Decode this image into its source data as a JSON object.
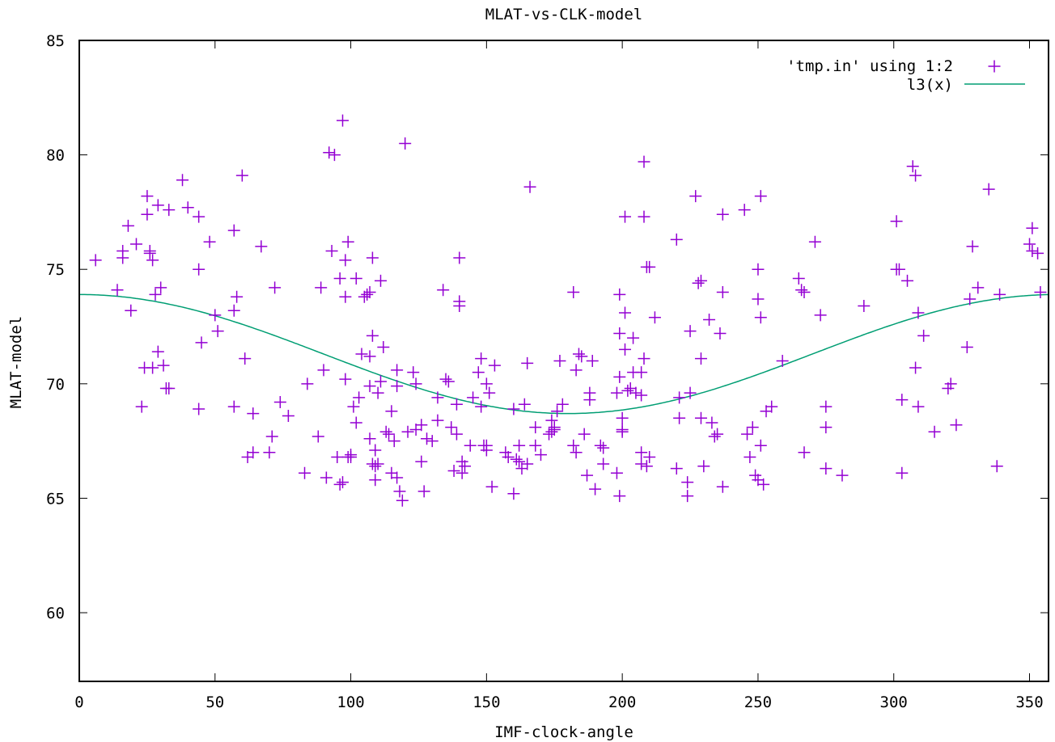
{
  "chart_data": {
    "type": "scatter",
    "title": "MLAT-vs-CLK-model",
    "xlabel": "IMF-clock-angle",
    "ylabel": "MLAT-model",
    "xlim": [
      0,
      357
    ],
    "ylim": [
      57,
      85
    ],
    "xticks": [
      0,
      50,
      100,
      150,
      200,
      250,
      300,
      350
    ],
    "yticks": [
      60,
      65,
      70,
      75,
      80,
      85
    ],
    "grid": false,
    "legend_position": "top-right",
    "colors": {
      "points": "#9400d3",
      "curve": "#009e73"
    },
    "series": [
      {
        "name": "'tmp.in' using 1:2",
        "kind": "points",
        "marker": "plus",
        "points": [
          [
            6,
            75.4
          ],
          [
            14,
            74.1
          ],
          [
            16,
            75.5
          ],
          [
            16,
            75.8
          ],
          [
            18,
            76.9
          ],
          [
            19,
            73.2
          ],
          [
            21,
            76.1
          ],
          [
            23,
            69.0
          ],
          [
            24,
            70.7
          ],
          [
            25,
            78.2
          ],
          [
            25,
            77.4
          ],
          [
            26,
            75.8
          ],
          [
            26,
            75.7
          ],
          [
            27,
            75.4
          ],
          [
            27,
            70.7
          ],
          [
            28,
            73.9
          ],
          [
            29,
            77.8
          ],
          [
            30,
            74.2
          ],
          [
            29,
            71.4
          ],
          [
            31,
            70.8
          ],
          [
            32,
            69.8
          ],
          [
            33,
            77.6
          ],
          [
            33,
            69.8
          ],
          [
            38,
            78.9
          ],
          [
            40,
            77.7
          ],
          [
            44,
            77.3
          ],
          [
            44,
            75.0
          ],
          [
            44,
            68.9
          ],
          [
            45,
            71.8
          ],
          [
            48,
            76.2
          ],
          [
            50,
            73.0
          ],
          [
            51,
            72.3
          ],
          [
            57,
            76.7
          ],
          [
            57,
            73.2
          ],
          [
            57,
            69.0
          ],
          [
            58,
            73.8
          ],
          [
            60,
            79.1
          ],
          [
            61,
            71.1
          ],
          [
            62,
            66.8
          ],
          [
            64,
            67.0
          ],
          [
            64,
            68.7
          ],
          [
            67,
            76.0
          ],
          [
            70,
            67.0
          ],
          [
            71,
            67.7
          ],
          [
            72,
            74.2
          ],
          [
            74,
            69.2
          ],
          [
            77,
            68.6
          ],
          [
            83,
            66.1
          ],
          [
            84,
            70.0
          ],
          [
            88,
            67.7
          ],
          [
            89,
            74.2
          ],
          [
            90,
            70.6
          ],
          [
            91,
            65.9
          ],
          [
            92,
            80.1
          ],
          [
            93,
            75.8
          ],
          [
            94,
            80.0
          ],
          [
            95,
            66.8
          ],
          [
            96,
            65.6
          ],
          [
            96,
            74.6
          ],
          [
            97,
            81.5
          ],
          [
            97,
            65.7
          ],
          [
            98,
            73.8
          ],
          [
            98,
            75.4
          ],
          [
            98,
            70.2
          ],
          [
            99,
            76.2
          ],
          [
            99,
            66.8
          ],
          [
            100,
            66.8
          ],
          [
            100,
            66.9
          ],
          [
            101,
            69.0
          ],
          [
            102,
            74.6
          ],
          [
            102,
            68.3
          ],
          [
            103,
            69.4
          ],
          [
            104,
            71.3
          ],
          [
            105,
            73.8
          ],
          [
            106,
            73.9
          ],
          [
            107,
            74.0
          ],
          [
            107,
            71.2
          ],
          [
            107,
            69.9
          ],
          [
            107,
            67.6
          ],
          [
            108,
            75.5
          ],
          [
            108,
            72.1
          ],
          [
            108,
            66.5
          ],
          [
            109,
            67.1
          ],
          [
            109,
            65.8
          ],
          [
            109,
            66.4
          ],
          [
            110,
            69.6
          ],
          [
            110,
            66.5
          ],
          [
            111,
            74.5
          ],
          [
            111,
            70.1
          ],
          [
            112,
            71.6
          ],
          [
            113,
            67.9
          ],
          [
            114,
            67.8
          ],
          [
            115,
            66.1
          ],
          [
            115,
            68.8
          ],
          [
            116,
            67.5
          ],
          [
            117,
            65.9
          ],
          [
            117,
            70.6
          ],
          [
            117,
            69.9
          ],
          [
            118,
            65.3
          ],
          [
            119,
            64.9
          ],
          [
            120,
            80.5
          ],
          [
            121,
            67.9
          ],
          [
            123,
            70.5
          ],
          [
            124,
            70.0
          ],
          [
            124,
            68.0
          ],
          [
            126,
            66.6
          ],
          [
            126,
            68.2
          ],
          [
            127,
            65.3
          ],
          [
            128,
            67.6
          ],
          [
            130,
            67.5
          ],
          [
            132,
            69.4
          ],
          [
            132,
            68.4
          ],
          [
            134,
            74.1
          ],
          [
            135,
            70.2
          ],
          [
            136,
            70.1
          ],
          [
            137,
            68.1
          ],
          [
            138,
            66.2
          ],
          [
            139,
            67.8
          ],
          [
            139,
            69.1
          ],
          [
            140,
            75.5
          ],
          [
            140,
            73.6
          ],
          [
            140,
            73.4
          ],
          [
            141,
            66.1
          ],
          [
            141,
            66.6
          ],
          [
            142,
            66.4
          ],
          [
            144,
            67.3
          ],
          [
            145,
            69.4
          ],
          [
            147,
            70.5
          ],
          [
            148,
            71.1
          ],
          [
            148,
            69.0
          ],
          [
            149,
            67.3
          ],
          [
            150,
            67.3
          ],
          [
            150,
            67.1
          ],
          [
            150,
            70.0
          ],
          [
            151,
            69.6
          ],
          [
            152,
            65.5
          ],
          [
            153,
            70.8
          ],
          [
            157,
            67.0
          ],
          [
            158,
            66.8
          ],
          [
            160,
            65.2
          ],
          [
            160,
            68.9
          ],
          [
            161,
            66.7
          ],
          [
            162,
            67.3
          ],
          [
            162,
            66.6
          ],
          [
            163,
            66.3
          ],
          [
            164,
            69.1
          ],
          [
            165,
            70.9
          ],
          [
            165,
            66.5
          ],
          [
            166,
            78.6
          ],
          [
            168,
            67.3
          ],
          [
            168,
            68.1
          ],
          [
            170,
            66.9
          ],
          [
            173,
            67.8
          ],
          [
            174,
            68.4
          ],
          [
            174,
            67.9
          ],
          [
            175,
            68.1
          ],
          [
            175,
            68.0
          ],
          [
            176,
            68.8
          ],
          [
            177,
            71.0
          ],
          [
            178,
            69.1
          ],
          [
            182,
            67.3
          ],
          [
            182,
            74.0
          ],
          [
            183,
            67.0
          ],
          [
            183,
            70.6
          ],
          [
            184,
            71.3
          ],
          [
            185,
            71.2
          ],
          [
            186,
            67.8
          ],
          [
            187,
            66.0
          ],
          [
            188,
            69.6
          ],
          [
            188,
            69.3
          ],
          [
            189,
            71.0
          ],
          [
            190,
            65.4
          ],
          [
            192,
            67.3
          ],
          [
            193,
            66.5
          ],
          [
            193,
            67.2
          ],
          [
            198,
            69.6
          ],
          [
            198,
            66.1
          ],
          [
            199,
            73.9
          ],
          [
            199,
            72.2
          ],
          [
            199,
            70.3
          ],
          [
            199,
            65.1
          ],
          [
            200,
            68.5
          ],
          [
            200,
            68.0
          ],
          [
            200,
            67.9
          ],
          [
            201,
            73.1
          ],
          [
            201,
            71.5
          ],
          [
            201,
            77.3
          ],
          [
            202,
            69.7
          ],
          [
            203,
            69.8
          ],
          [
            204,
            72.0
          ],
          [
            204,
            70.5
          ],
          [
            205,
            69.6
          ],
          [
            207,
            70.5
          ],
          [
            207,
            69.5
          ],
          [
            207,
            67.0
          ],
          [
            207,
            66.5
          ],
          [
            208,
            79.7
          ],
          [
            208,
            77.3
          ],
          [
            208,
            71.1
          ],
          [
            209,
            66.4
          ],
          [
            209,
            75.1
          ],
          [
            210,
            75.1
          ],
          [
            210,
            66.8
          ],
          [
            212,
            72.9
          ],
          [
            220,
            76.3
          ],
          [
            220,
            66.3
          ],
          [
            221,
            69.4
          ],
          [
            221,
            68.5
          ],
          [
            224,
            65.1
          ],
          [
            224,
            65.7
          ],
          [
            225,
            72.3
          ],
          [
            225,
            69.6
          ],
          [
            227,
            78.2
          ],
          [
            228,
            74.4
          ],
          [
            229,
            74.5
          ],
          [
            229,
            71.1
          ],
          [
            229,
            68.5
          ],
          [
            230,
            66.4
          ],
          [
            232,
            72.8
          ],
          [
            233,
            68.3
          ],
          [
            234,
            67.7
          ],
          [
            235,
            67.8
          ],
          [
            236,
            72.2
          ],
          [
            237,
            74.0
          ],
          [
            237,
            77.4
          ],
          [
            237,
            65.5
          ],
          [
            245,
            77.6
          ],
          [
            246,
            67.8
          ],
          [
            247,
            66.8
          ],
          [
            248,
            68.1
          ],
          [
            249,
            66.0
          ],
          [
            250,
            65.8
          ],
          [
            250,
            75.0
          ],
          [
            250,
            73.7
          ],
          [
            251,
            78.2
          ],
          [
            251,
            72.9
          ],
          [
            251,
            67.3
          ],
          [
            252,
            65.6
          ],
          [
            253,
            68.8
          ],
          [
            255,
            69.0
          ],
          [
            259,
            71.0
          ],
          [
            265,
            74.6
          ],
          [
            266,
            74.1
          ],
          [
            267,
            74.0
          ],
          [
            267,
            67.0
          ],
          [
            271,
            76.2
          ],
          [
            273,
            73.0
          ],
          [
            275,
            69.0
          ],
          [
            275,
            68.1
          ],
          [
            275,
            66.3
          ],
          [
            281,
            66.0
          ],
          [
            289,
            73.4
          ],
          [
            301,
            75.0
          ],
          [
            301,
            77.1
          ],
          [
            302,
            75.0
          ],
          [
            303,
            69.3
          ],
          [
            303,
            66.1
          ],
          [
            305,
            74.5
          ],
          [
            307,
            79.5
          ],
          [
            308,
            70.7
          ],
          [
            308,
            79.1
          ],
          [
            309,
            73.1
          ],
          [
            309,
            69.0
          ],
          [
            311,
            72.1
          ],
          [
            315,
            67.9
          ],
          [
            320,
            69.8
          ],
          [
            321,
            70.0
          ],
          [
            323,
            68.2
          ],
          [
            327,
            71.6
          ],
          [
            328,
            73.7
          ],
          [
            329,
            76.0
          ],
          [
            331,
            74.2
          ],
          [
            335,
            78.5
          ],
          [
            338,
            66.4
          ],
          [
            339,
            73.9
          ],
          [
            350,
            76.1
          ],
          [
            351,
            76.8
          ],
          [
            351,
            75.8
          ],
          [
            353,
            75.7
          ],
          [
            354,
            74.0
          ]
        ]
      },
      {
        "name": "l3(x)",
        "kind": "line",
        "function": "71.3 + 2.6*cos(x*pi/180)",
        "x_range": [
          0,
          357
        ]
      }
    ]
  }
}
